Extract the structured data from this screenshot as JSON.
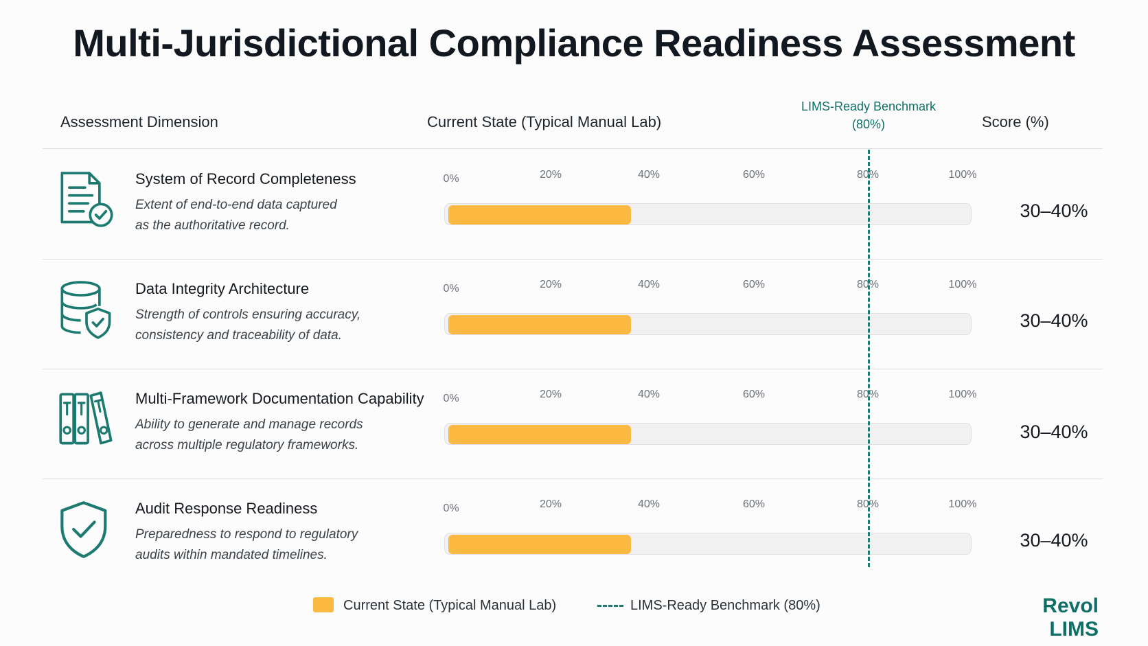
{
  "title": "Multi-Jurisdictional Compliance Readiness Assessment",
  "headers": {
    "dimension": "Assessment Dimension",
    "current_state": "Current State (Typical Manual Lab)",
    "benchmark_line1": "LIMS-Ready Benchmark",
    "benchmark_line2": "(80%)",
    "score": "Score (%)"
  },
  "ticks": [
    "0%",
    "20%",
    "40%",
    "60%",
    "80%",
    "100%"
  ],
  "legend": {
    "current": "Current State (Typical Manual Lab)",
    "benchmark": "LIMS-Ready Benchmark (80%)"
  },
  "brand": "Revol LIMS",
  "colors": {
    "bar": "#fbb942",
    "benchmark": "#1c7a70",
    "icon": "#1c7a70",
    "track": "#f1f1f1"
  },
  "chart_data": {
    "type": "bar",
    "orientation": "horizontal",
    "title": "Multi-Jurisdictional Compliance Readiness Assessment",
    "xlim": [
      0,
      100
    ],
    "unit": "%",
    "benchmark": {
      "name": "LIMS-Ready Benchmark (80%)",
      "value": 80
    },
    "rows": [
      {
        "icon": "document-check-icon",
        "title": "System of Record Completeness",
        "desc_line1": "Extent of end-to-end data captured",
        "desc_line2": "as the authoritative record.",
        "value": 35,
        "score": "30–40%"
      },
      {
        "icon": "database-shield-icon",
        "title": "Data Integrity Architecture",
        "desc_line1": "Strength of controls ensuring accuracy,",
        "desc_line2": "consistency and traceability of data.",
        "value": 35,
        "score": "30–40%"
      },
      {
        "icon": "binders-icon",
        "title": "Multi-Framework Documentation Capability",
        "desc_line1": "Ability to generate and manage records",
        "desc_line2": "across multiple regulatory frameworks.",
        "value": 35,
        "score": "30–40%"
      },
      {
        "icon": "shield-check-icon",
        "title": "Audit Response Readiness",
        "desc_line1": "Preparedness to respond to regulatory",
        "desc_line2": "audits within mandated timelines.",
        "value": 35,
        "score": "30–40%"
      }
    ]
  }
}
